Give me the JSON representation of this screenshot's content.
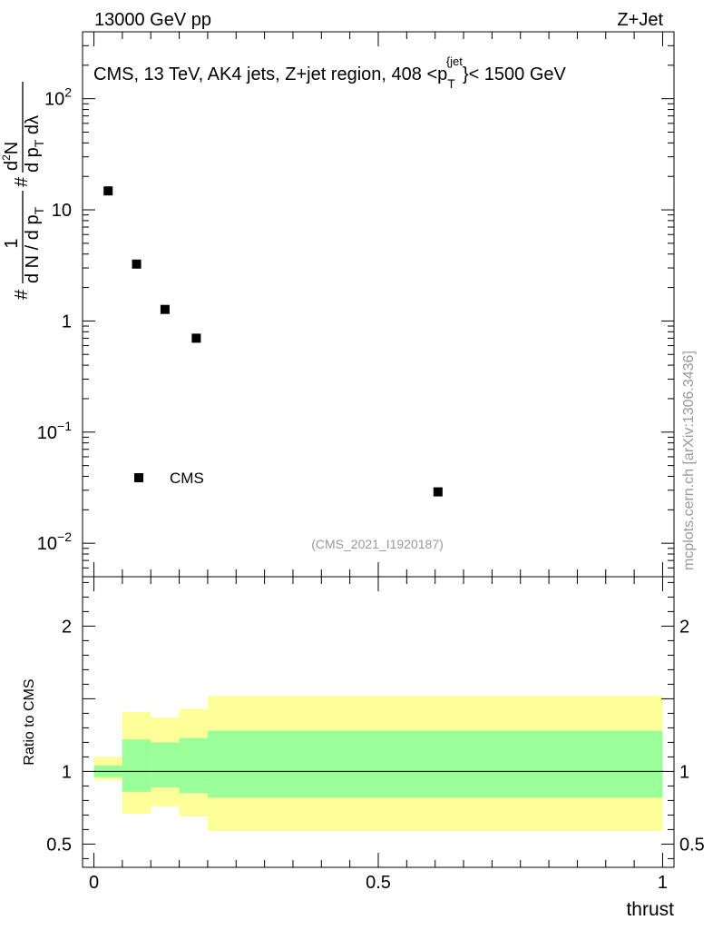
{
  "header": {
    "left": "13000 GeV pp",
    "right": "Z+Jet"
  },
  "plot_label": "CMS, 13 TeV, AK4 jets, Z+jet region, 408 <p",
  "plot_label_sup": "{jet",
  "plot_label_sub": "T",
  "plot_label_tail": "}< 1500 GeV",
  "watermark": "(CMS_2021_I1920187)",
  "side_label": "mcplots.cern.ch [arXiv:1306.3436]",
  "colors": {
    "band_outer": "#ffff99",
    "band_inner": "#99ff99",
    "marker": "#000000"
  },
  "chart_data": [
    {
      "type": "scatter",
      "panel": "main",
      "yscale": "log",
      "ylabel": "1/(dN/dpT) d²N/(dpT dλ)",
      "ylabel_parts": {
        "hash1": "#",
        "num": "1",
        "den": "d N / d p",
        "den_sub": "T",
        "hash2": "#",
        "num2": "d",
        "num2_sup": "2",
        "num2_tail": "N",
        "den2": "d p",
        "den2_sub": "T",
        "den2_tail": " dλ"
      },
      "xlim": [
        -0.02,
        1.02
      ],
      "ylim": [
        0.005,
        400
      ],
      "y_ticks": [
        {
          "value": 0.01,
          "label": "10",
          "exp": "−2"
        },
        {
          "value": 0.1,
          "label": "10",
          "exp": "−1"
        },
        {
          "value": 1,
          "label": "1",
          "exp": ""
        },
        {
          "value": 10,
          "label": "10",
          "exp": ""
        },
        {
          "value": 100,
          "label": "10",
          "exp": "2"
        }
      ],
      "series": [
        {
          "name": "CMS",
          "points": [
            {
              "x": 0.025,
              "y": 14.8
            },
            {
              "x": 0.075,
              "y": 3.25
            },
            {
              "x": 0.125,
              "y": 1.27
            },
            {
              "x": 0.18,
              "y": 0.7
            },
            {
              "x": 0.605,
              "y": 0.029
            }
          ]
        }
      ],
      "legend": [
        {
          "label": "CMS",
          "marker": "square"
        }
      ]
    },
    {
      "type": "area",
      "panel": "ratio",
      "ylabel": "Ratio to CMS",
      "xlabel": "thrust",
      "xlim": [
        -0.02,
        1.02
      ],
      "ylim": [
        0.34,
        2.34
      ],
      "x_ticks": [
        {
          "value": 0,
          "label": "0"
        },
        {
          "value": 0.5,
          "label": "0.5"
        },
        {
          "value": 1,
          "label": "1"
        }
      ],
      "y_ticks": [
        {
          "value": 0.5,
          "label": "0.5"
        },
        {
          "value": 1,
          "label": "1"
        },
        {
          "value": 2,
          "label": "2"
        }
      ],
      "reference_line": 1,
      "bins": [
        {
          "lo": 0.0,
          "hi": 0.05,
          "inner": [
            0.96,
            1.04
          ],
          "outer": [
            0.94,
            1.1
          ]
        },
        {
          "lo": 0.05,
          "hi": 0.1,
          "inner": [
            0.86,
            1.22
          ],
          "outer": [
            0.71,
            1.41
          ]
        },
        {
          "lo": 0.1,
          "hi": 0.15,
          "inner": [
            0.89,
            1.2
          ],
          "outer": [
            0.76,
            1.37
          ]
        },
        {
          "lo": 0.15,
          "hi": 0.2,
          "inner": [
            0.85,
            1.23
          ],
          "outer": [
            0.69,
            1.43
          ]
        },
        {
          "lo": 0.2,
          "hi": 1.0,
          "inner": [
            0.82,
            1.28
          ],
          "outer": [
            0.59,
            1.52
          ]
        }
      ]
    }
  ]
}
